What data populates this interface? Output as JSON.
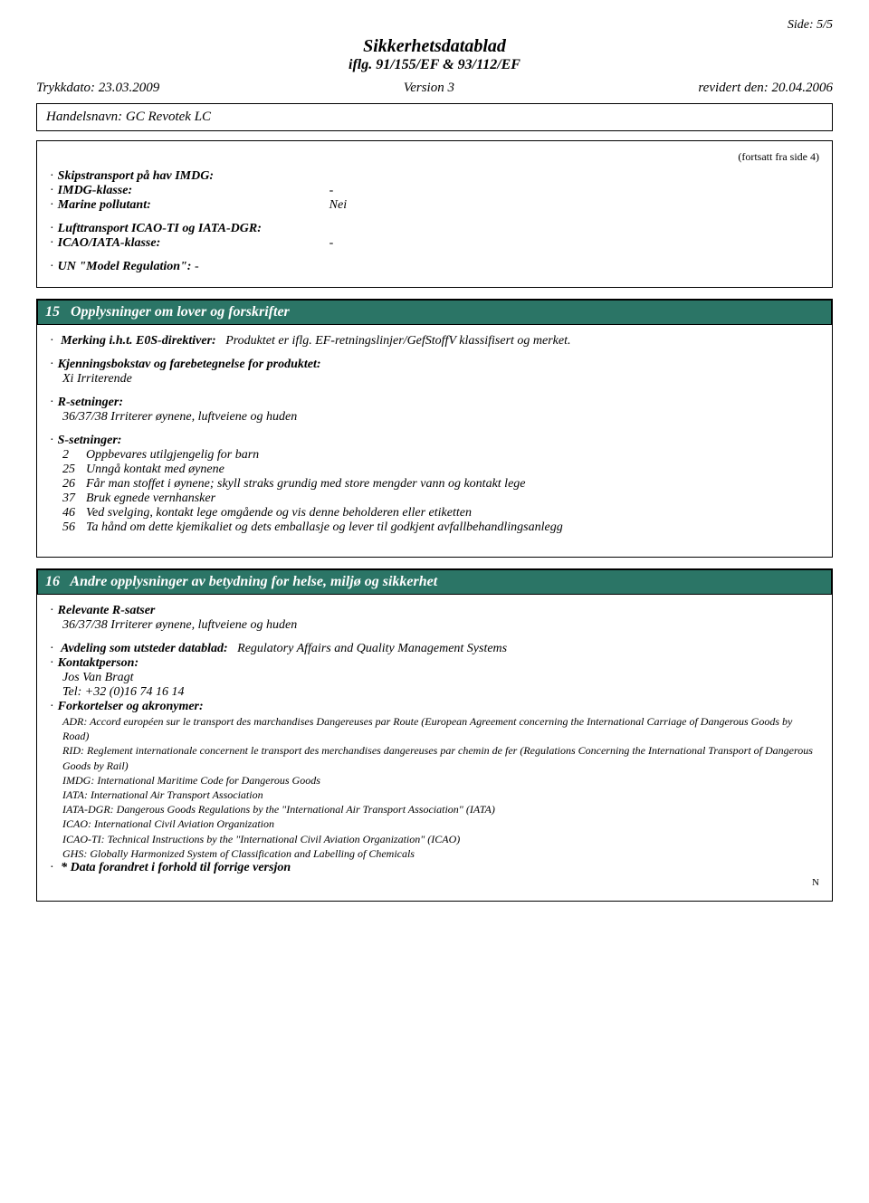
{
  "page_indicator": "Side: 5/5",
  "header": {
    "title": "Sikkerhetsdatablad",
    "subtitle": "iflg. 91/155/EF & 93/112/EF",
    "print_date_label": "Trykkdato:",
    "print_date_value": "23.03.2009",
    "version_label": "Version",
    "version_value": "3",
    "revised_label": "revidert den:",
    "revised_value": "20.04.2006"
  },
  "trade_name_label": "Handelsnavn:",
  "trade_name_value": "GC Revotek LC",
  "box1": {
    "continued": "(fortsatt fra side 4)",
    "ship_title": "Skipstransport på hav IMDG:",
    "ship_class_label": "IMDG-klasse:",
    "ship_class_value": "-",
    "marine_label": "Marine pollutant:",
    "marine_value": "Nei",
    "air_title": "Lufttransport ICAO-TI og IATA-DGR:",
    "air_class_label": "ICAO/IATA-klasse:",
    "air_class_value": "-",
    "un_label": "UN \"Model Regulation\":",
    "un_value": "-"
  },
  "section15": {
    "number": "15",
    "title": "Opplysninger om lover og forskrifter",
    "merking_label": "Merking i.h.t. E0S-direktiver:",
    "merking_value": "Produktet er iflg. EF-retningslinjer/GefStoffV klassifisert og merket.",
    "kjenning_label": "Kjenningsbokstav og farebetegnelse for produktet:",
    "kjenning_value": "Xi Irriterende",
    "r_label": "R-setninger:",
    "r_value": "36/37/38 Irriterer øynene, luftveiene og huden",
    "s_label": "S-setninger:",
    "s_phrases": [
      {
        "code": "2",
        "text": "Oppbevares utilgjengelig for barn"
      },
      {
        "code": "25",
        "text": "Unngå kontakt med øynene"
      },
      {
        "code": "26",
        "text": "Får man stoffet i øynene; skyll straks grundig med store mengder vann og kontakt lege"
      },
      {
        "code": "37",
        "text": "Bruk egnede vernhansker"
      },
      {
        "code": "46",
        "text": "Ved svelging, kontakt lege omgående og vis denne beholderen eller etiketten"
      },
      {
        "code": "56",
        "text": "Ta hånd om dette kjemikaliet og dets emballasje og lever til godkjent avfallbehandlingsanlegg"
      }
    ]
  },
  "section16": {
    "number": "16",
    "title": "Andre opplysninger av betydning for helse, miljø og sikkerhet",
    "rel_r_label": "Relevante R-satser",
    "rel_r_value": "36/37/38 Irriterer øynene, luftveiene og huden",
    "dept_label": "Avdeling som utsteder datablad:",
    "dept_value": "Regulatory Affairs and Quality Management Systems",
    "contact_label": "Kontaktperson:",
    "contact_name": "Jos Van Bragt",
    "contact_tel": "Tel: +32 (0)16 74 16 14",
    "abbr_label": "Forkortelser og akronymer:",
    "abbr_lines": [
      "ADR: Accord européen sur le transport des marchandises Dangereuses par Route (European Agreement concerning the International Carriage of Dangerous Goods by Road)",
      "RID: Reglement internationale concernent le transport des merchandises dangereuses par chemin de fer (Regulations Concerning the International Transport of Dangerous Goods by Rail)",
      "IMDG: International Maritime Code for Dangerous Goods",
      "IATA: International Air Transport Association",
      "IATA-DGR: Dangerous Goods Regulations by the \"International Air Transport Association\" (IATA)",
      "ICAO: International Civil Aviation Organization",
      "ICAO-TI: Technical Instructions by the \"International Civil Aviation Organization\" (ICAO)",
      "GHS: Globally Harmonized System of Classification and Labelling of Chemicals"
    ],
    "changed_label": "* Data forandret i forhold til forrige versjon",
    "end_marker": "N"
  }
}
